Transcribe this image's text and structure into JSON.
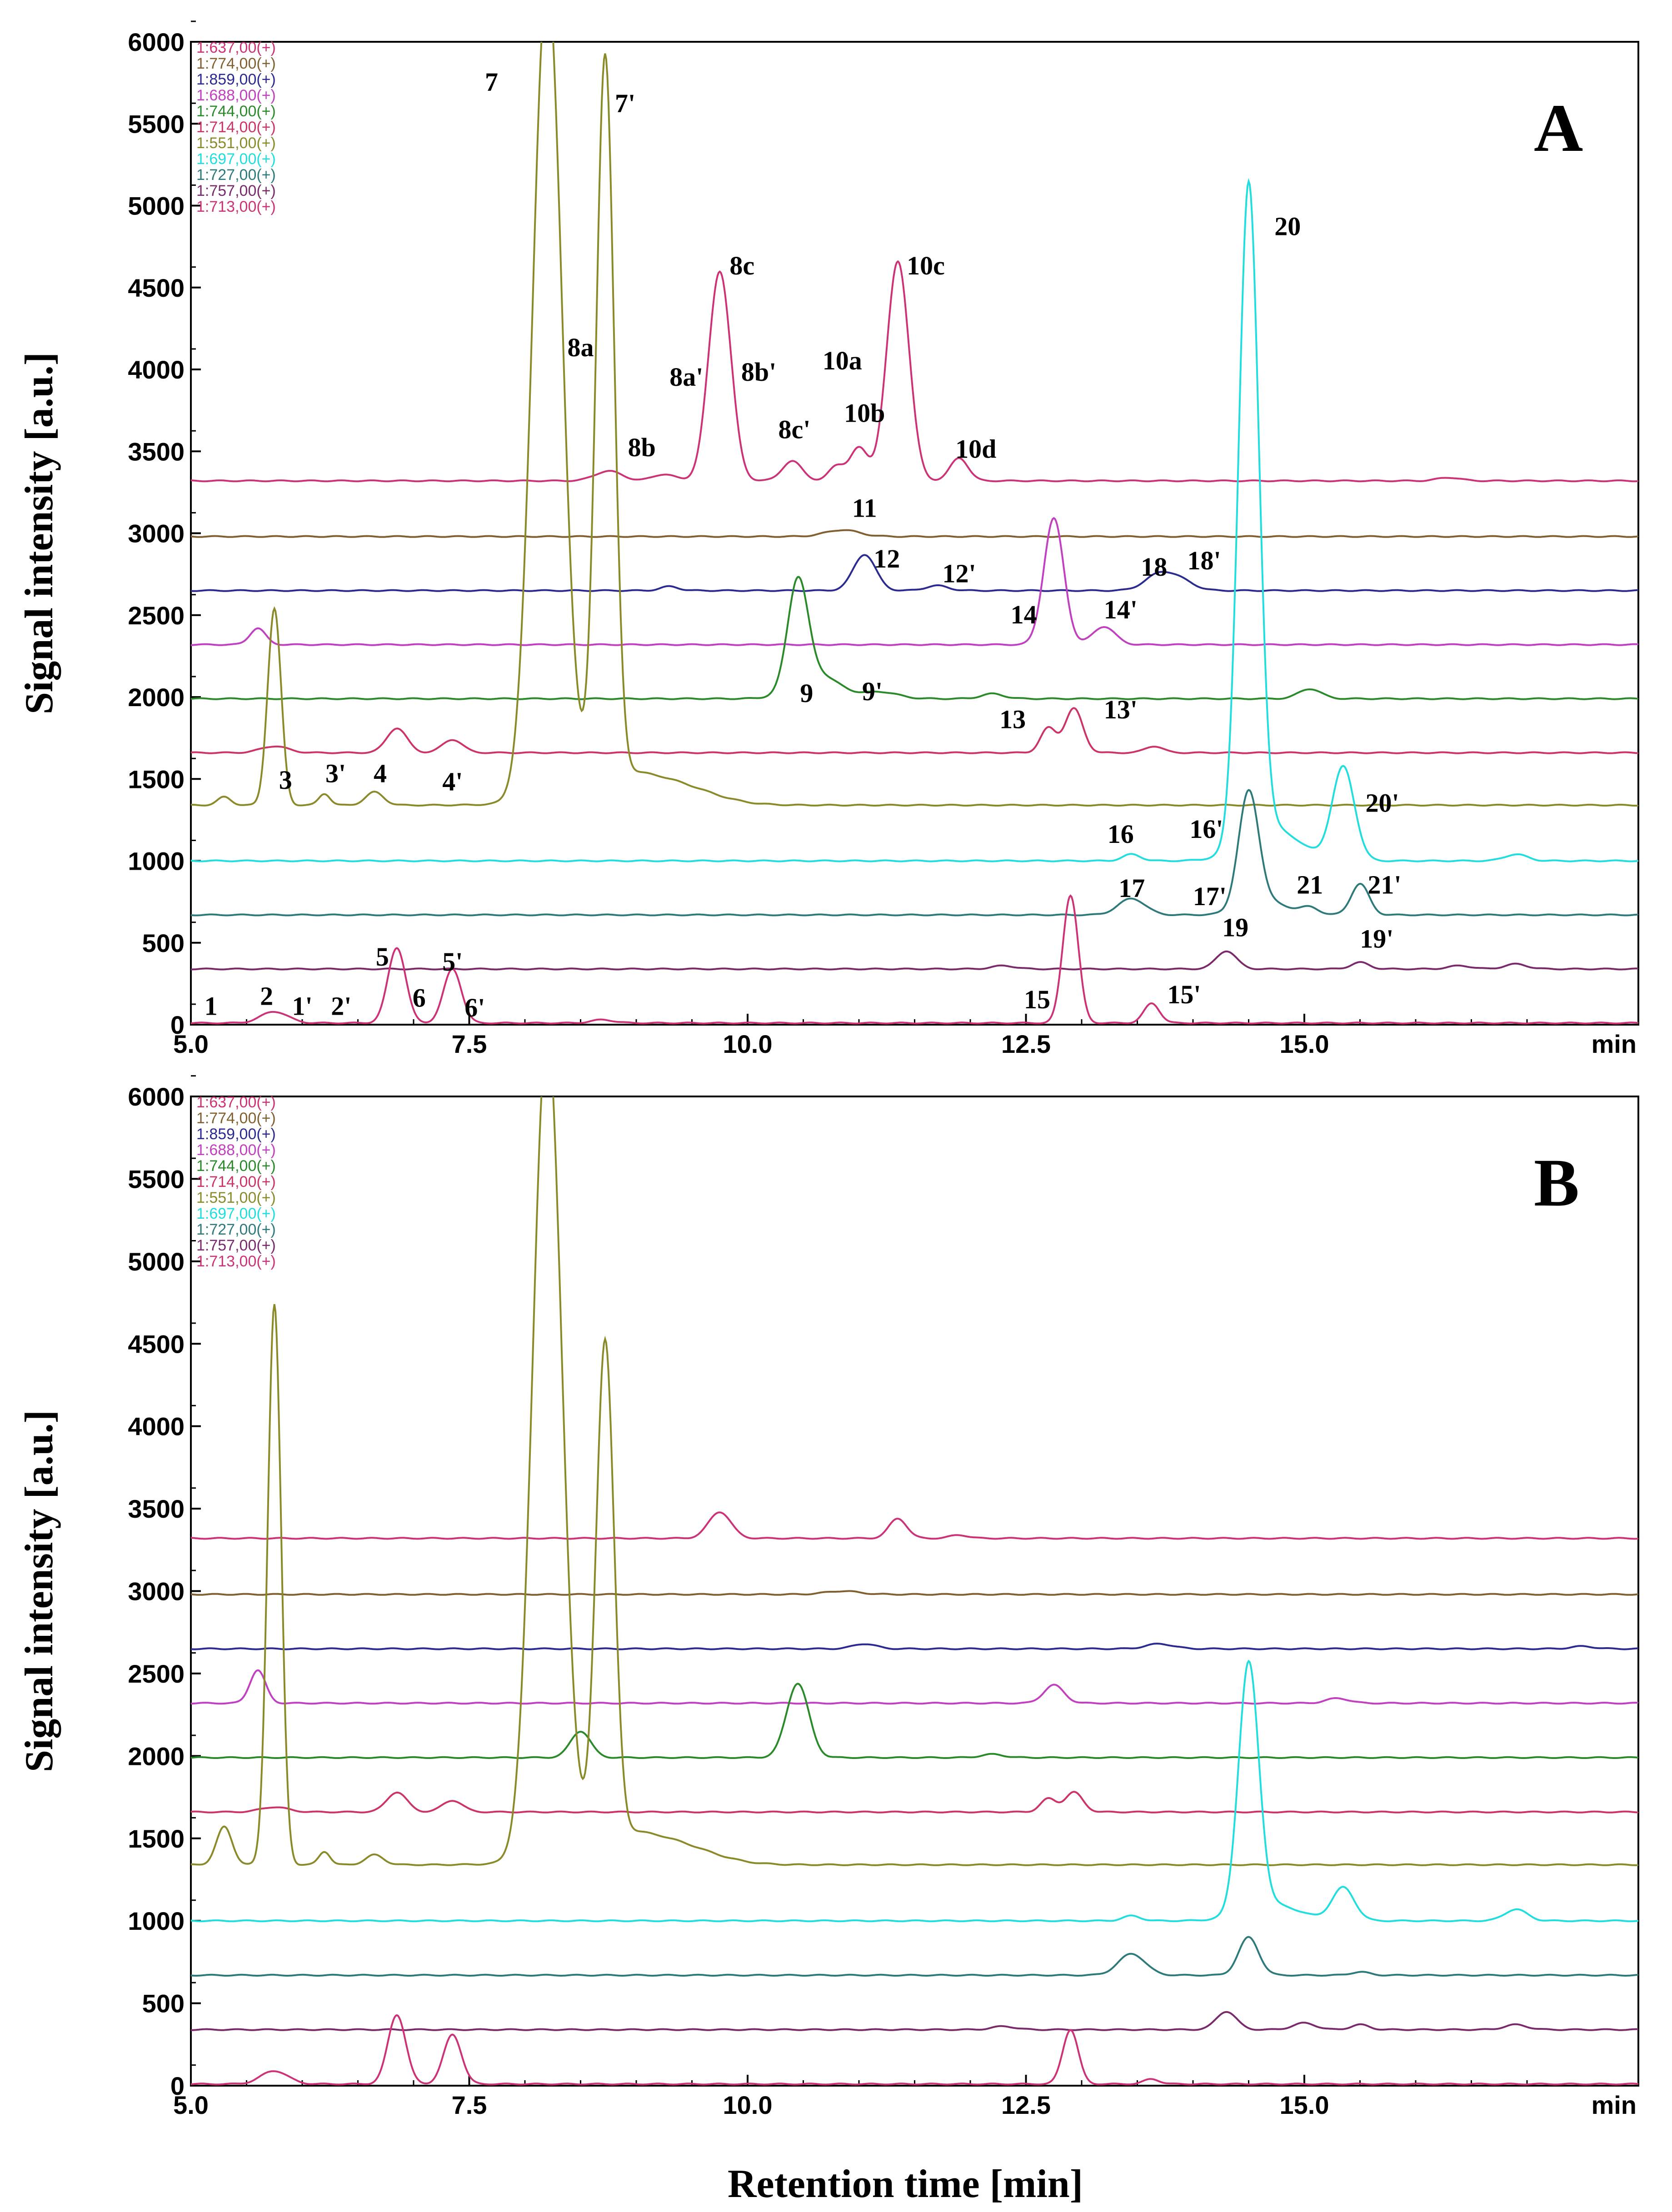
{
  "chart_data": [
    {
      "type": "line",
      "panel": "A",
      "xlabel": "Retention time  [min]",
      "ylabel": "Signal intensity  [a.u.]",
      "xunit": "min",
      "xlim": [
        5.0,
        18.0
      ],
      "ylim": [
        0,
        6000
      ],
      "xticks": [
        "5.0",
        "7.5",
        "10.0",
        "12.5",
        "15.0"
      ],
      "yticks": [
        "0",
        "500",
        "1000",
        "1500",
        "2000",
        "2500",
        "3000",
        "3500",
        "4000",
        "4500",
        "5000",
        "5500",
        "6000"
      ],
      "series": [
        {
          "name": "1:637,00(+)",
          "color": "#cc3377",
          "baseline": 3320,
          "peaks": [
            [
              8.75,
              60,
              0.12
            ],
            [
              9.25,
              40,
              0.1
            ],
            [
              9.75,
              1280,
              0.1
            ],
            [
              10.4,
              120,
              0.09
            ],
            [
              10.8,
              90,
              0.07
            ],
            [
              11.0,
              200,
              0.08
            ],
            [
              11.35,
              1340,
              0.1
            ],
            [
              11.9,
              140,
              0.08
            ],
            [
              16.3,
              20,
              0.1
            ]
          ]
        },
        {
          "name": "1:774,00(+)",
          "color": "#806030",
          "baseline": 2980,
          "peaks": [
            [
              10.85,
              40,
              0.15
            ]
          ]
        },
        {
          "name": "1:859,00(+)",
          "color": "#2a2a90",
          "baseline": 2650,
          "peaks": [
            [
              9.3,
              25,
              0.08
            ],
            [
              11.05,
              220,
              0.1
            ],
            [
              11.7,
              30,
              0.1
            ],
            [
              13.7,
              100,
              0.13
            ],
            [
              13.9,
              50,
              0.12
            ]
          ]
        },
        {
          "name": "1:688,00(+)",
          "color": "#c040c0",
          "baseline": 2320,
          "peaks": [
            [
              5.6,
              100,
              0.07
            ],
            [
              12.75,
              770,
              0.09
            ],
            [
              13.2,
              110,
              0.1
            ]
          ]
        },
        {
          "name": "1:744,00(+)",
          "color": "#2a8a2a",
          "baseline": 1990,
          "peaks": [
            [
              10.45,
              640,
              0.09
            ],
            [
              10.62,
              150,
              0.2
            ],
            [
              11.2,
              40,
              0.15
            ],
            [
              12.2,
              30,
              0.1
            ],
            [
              15.05,
              60,
              0.1
            ]
          ]
        },
        {
          "name": "1:714,00(+)",
          "color": "#cc3366",
          "baseline": 1660,
          "peaks": [
            [
              5.75,
              40,
              0.12
            ],
            [
              6.85,
              150,
              0.09
            ],
            [
              7.35,
              80,
              0.09
            ],
            [
              12.7,
              150,
              0.07
            ],
            [
              12.93,
              270,
              0.08
            ],
            [
              13.65,
              40,
              0.08
            ]
          ]
        },
        {
          "name": "1:551,00(+)",
          "color": "#8a8a2a",
          "baseline": 1340,
          "peaks": [
            [
              5.3,
              50,
              0.06
            ],
            [
              5.75,
              1200,
              0.06
            ],
            [
              6.2,
              70,
              0.05
            ],
            [
              6.65,
              80,
              0.08
            ],
            [
              8.2,
              5000,
              0.13
            ],
            [
              8.72,
              4400,
              0.08
            ],
            [
              8.88,
              200,
              0.45
            ],
            [
              9.5,
              40,
              0.3
            ]
          ]
        },
        {
          "name": "1:697,00(+)",
          "color": "#22dddd",
          "baseline": 1000,
          "peaks": [
            [
              13.45,
              40,
              0.08
            ],
            [
              14.5,
              4000,
              0.09
            ],
            [
              14.7,
              200,
              0.25
            ],
            [
              15.35,
              570,
              0.1
            ],
            [
              16.9,
              40,
              0.1
            ]
          ]
        },
        {
          "name": "1:727,00(+)",
          "color": "#2e7a7a",
          "baseline": 670,
          "peaks": [
            [
              13.45,
              100,
              0.12
            ],
            [
              14.5,
              700,
              0.09
            ],
            [
              14.65,
              80,
              0.2
            ],
            [
              15.05,
              40,
              0.08
            ],
            [
              15.5,
              190,
              0.08
            ]
          ]
        },
        {
          "name": "1:757,00(+)",
          "color": "#7a2a6a",
          "baseline": 340,
          "peaks": [
            [
              12.3,
              20,
              0.1
            ],
            [
              14.3,
              110,
              0.09
            ],
            [
              15.5,
              40,
              0.08
            ],
            [
              16.4,
              20,
              0.1
            ],
            [
              16.9,
              30,
              0.1
            ]
          ]
        },
        {
          "name": "1:713,00(+)",
          "color": "#cc3377",
          "baseline": 10,
          "peaks": [
            [
              5.75,
              70,
              0.12
            ],
            [
              6.85,
              460,
              0.08
            ],
            [
              7.35,
              330,
              0.08
            ],
            [
              8.7,
              20,
              0.1
            ],
            [
              12.9,
              780,
              0.07
            ],
            [
              13.63,
              120,
              0.07
            ]
          ]
        }
      ],
      "annotations": [
        {
          "label": "7",
          "x": 7.7,
          "y": 5700
        },
        {
          "label": "7'",
          "x": 8.9,
          "y": 5570
        },
        {
          "label": "8a",
          "x": 8.5,
          "y": 4080
        },
        {
          "label": "8b",
          "x": 9.05,
          "y": 3470
        },
        {
          "label": "8a'",
          "x": 9.45,
          "y": 3900
        },
        {
          "label": "8c",
          "x": 9.95,
          "y": 4580
        },
        {
          "label": "8b'",
          "x": 10.1,
          "y": 3930
        },
        {
          "label": "8c'",
          "x": 10.42,
          "y": 3580
        },
        {
          "label": "10a",
          "x": 10.85,
          "y": 4000
        },
        {
          "label": "10b",
          "x": 11.05,
          "y": 3680
        },
        {
          "label": "10c",
          "x": 11.6,
          "y": 4580
        },
        {
          "label": "10d",
          "x": 12.05,
          "y": 3460
        },
        {
          "label": "11",
          "x": 11.05,
          "y": 3100
        },
        {
          "label": "12",
          "x": 11.25,
          "y": 2790
        },
        {
          "label": "12'",
          "x": 11.9,
          "y": 2700
        },
        {
          "label": "14",
          "x": 12.48,
          "y": 2450
        },
        {
          "label": "14'",
          "x": 13.35,
          "y": 2480
        },
        {
          "label": "18",
          "x": 13.65,
          "y": 2740
        },
        {
          "label": "18'",
          "x": 14.1,
          "y": 2780
        },
        {
          "label": "9",
          "x": 10.53,
          "y": 1970
        },
        {
          "label": "9'",
          "x": 11.12,
          "y": 1980
        },
        {
          "label": "13",
          "x": 12.38,
          "y": 1810
        },
        {
          "label": "13'",
          "x": 13.35,
          "y": 1870
        },
        {
          "label": "3",
          "x": 5.85,
          "y": 1440
        },
        {
          "label": "3'",
          "x": 6.3,
          "y": 1480
        },
        {
          "label": "4",
          "x": 6.7,
          "y": 1480
        },
        {
          "label": "4'",
          "x": 7.35,
          "y": 1430
        },
        {
          "label": "20",
          "x": 14.85,
          "y": 4820
        },
        {
          "label": "20'",
          "x": 15.7,
          "y": 1300
        },
        {
          "label": "16",
          "x": 13.35,
          "y": 1110
        },
        {
          "label": "16'",
          "x": 14.12,
          "y": 1140
        },
        {
          "label": "17",
          "x": 13.45,
          "y": 780
        },
        {
          "label": "17'",
          "x": 14.15,
          "y": 730
        },
        {
          "label": "21",
          "x": 15.05,
          "y": 800
        },
        {
          "label": "21'",
          "x": 15.72,
          "y": 800
        },
        {
          "label": "19",
          "x": 14.38,
          "y": 540
        },
        {
          "label": "19'",
          "x": 15.65,
          "y": 470
        },
        {
          "label": "15",
          "x": 12.6,
          "y": 100
        },
        {
          "label": "15'",
          "x": 13.92,
          "y": 130
        },
        {
          "label": "1",
          "x": 5.18,
          "y": 60
        },
        {
          "label": "2",
          "x": 5.68,
          "y": 120
        },
        {
          "label": "1'",
          "x": 6.0,
          "y": 60
        },
        {
          "label": "2'",
          "x": 6.35,
          "y": 60
        },
        {
          "label": "5",
          "x": 6.72,
          "y": 360
        },
        {
          "label": "5'",
          "x": 7.35,
          "y": 330
        },
        {
          "label": "6",
          "x": 7.05,
          "y": 110
        },
        {
          "label": "6'",
          "x": 7.55,
          "y": 50
        }
      ]
    },
    {
      "type": "line",
      "panel": "B",
      "xlabel": "Retention time  [min]",
      "ylabel": "Signal intensity  [a.u.]",
      "xunit": "min",
      "xlim": [
        5.0,
        18.0
      ],
      "ylim": [
        0,
        6000
      ],
      "xticks": [
        "5.0",
        "7.5",
        "10.0",
        "12.5",
        "15.0"
      ],
      "yticks": [
        "0",
        "500",
        "1000",
        "1500",
        "2000",
        "2500",
        "3000",
        "3500",
        "4000",
        "4500",
        "5000",
        "5500",
        "6000"
      ],
      "series": [
        {
          "name": "1:637,00(+)",
          "color": "#cc3377",
          "baseline": 3320,
          "peaks": [
            [
              9.75,
              160,
              0.1
            ],
            [
              11.35,
              120,
              0.08
            ],
            [
              11.9,
              20,
              0.08
            ]
          ]
        },
        {
          "name": "1:774,00(+)",
          "color": "#806030",
          "baseline": 2980,
          "peaks": [
            [
              10.85,
              20,
              0.15
            ]
          ]
        },
        {
          "name": "1:859,00(+)",
          "color": "#2a2a90",
          "baseline": 2650,
          "peaks": [
            [
              11.05,
              30,
              0.1
            ],
            [
              13.7,
              30,
              0.12
            ],
            [
              17.5,
              15,
              0.1
            ]
          ]
        },
        {
          "name": "1:688,00(+)",
          "color": "#c040c0",
          "baseline": 2320,
          "peaks": [
            [
              5.6,
              200,
              0.07
            ],
            [
              12.75,
              110,
              0.09
            ],
            [
              15.3,
              30,
              0.1
            ]
          ]
        },
        {
          "name": "1:744,00(+)",
          "color": "#2a8a2a",
          "baseline": 1990,
          "peaks": [
            [
              8.5,
              160,
              0.09
            ],
            [
              10.45,
              450,
              0.1
            ],
            [
              12.2,
              20,
              0.1
            ]
          ]
        },
        {
          "name": "1:714,00(+)",
          "color": "#cc3366",
          "baseline": 1660,
          "peaks": [
            [
              5.75,
              30,
              0.12
            ],
            [
              6.85,
              120,
              0.09
            ],
            [
              7.35,
              70,
              0.09
            ],
            [
              12.7,
              80,
              0.07
            ],
            [
              12.93,
              120,
              0.08
            ]
          ]
        },
        {
          "name": "1:551,00(+)",
          "color": "#8a8a2a",
          "baseline": 1340,
          "peaks": [
            [
              5.3,
              230,
              0.07
            ],
            [
              5.75,
              3400,
              0.06
            ],
            [
              6.2,
              80,
              0.05
            ],
            [
              6.65,
              60,
              0.08
            ],
            [
              8.2,
              5000,
              0.13
            ],
            [
              8.72,
              3000,
              0.08
            ],
            [
              8.88,
              200,
              0.45
            ],
            [
              9.5,
              40,
              0.3
            ]
          ]
        },
        {
          "name": "1:697,00(+)",
          "color": "#22dddd",
          "baseline": 1000,
          "peaks": [
            [
              13.45,
              30,
              0.08
            ],
            [
              14.5,
              1500,
              0.09
            ],
            [
              14.7,
              100,
              0.25
            ],
            [
              15.35,
              200,
              0.1
            ],
            [
              16.9,
              70,
              0.1
            ]
          ]
        },
        {
          "name": "1:727,00(+)",
          "color": "#2e7a7a",
          "baseline": 670,
          "peaks": [
            [
              13.45,
              130,
              0.12
            ],
            [
              14.5,
              230,
              0.09
            ],
            [
              15.5,
              20,
              0.08
            ]
          ]
        },
        {
          "name": "1:757,00(+)",
          "color": "#7a2a6a",
          "baseline": 340,
          "peaks": [
            [
              12.3,
              20,
              0.1
            ],
            [
              14.3,
              110,
              0.09
            ],
            [
              15.0,
              40,
              0.1
            ],
            [
              15.5,
              30,
              0.08
            ],
            [
              16.9,
              30,
              0.1
            ]
          ]
        },
        {
          "name": "1:713,00(+)",
          "color": "#cc3377",
          "baseline": 10,
          "peaks": [
            [
              5.75,
              80,
              0.12
            ],
            [
              6.85,
              420,
              0.08
            ],
            [
              7.35,
              300,
              0.08
            ],
            [
              12.9,
              330,
              0.07
            ],
            [
              13.63,
              30,
              0.07
            ]
          ]
        }
      ],
      "annotations": []
    }
  ]
}
